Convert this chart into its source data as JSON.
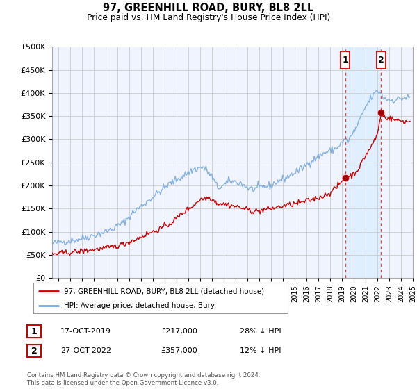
{
  "title": "97, GREENHILL ROAD, BURY, BL8 2LL",
  "subtitle": "Price paid vs. HM Land Registry's House Price Index (HPI)",
  "ylabel_ticks": [
    "£0",
    "£50K",
    "£100K",
    "£150K",
    "£200K",
    "£250K",
    "£300K",
    "£350K",
    "£400K",
    "£450K",
    "£500K"
  ],
  "ytick_values": [
    0,
    50000,
    100000,
    150000,
    200000,
    250000,
    300000,
    350000,
    400000,
    450000,
    500000
  ],
  "ylim": [
    0,
    500000
  ],
  "legend_label_red": "97, GREENHILL ROAD, BURY, BL8 2LL (detached house)",
  "legend_label_blue": "HPI: Average price, detached house, Bury",
  "annotation1_date": "17-OCT-2019",
  "annotation1_price": "£217,000",
  "annotation1_hpi": "28% ↓ HPI",
  "annotation2_date": "27-OCT-2022",
  "annotation2_price": "£357,000",
  "annotation2_hpi": "12% ↓ HPI",
  "footer": "Contains HM Land Registry data © Crown copyright and database right 2024.\nThis data is licensed under the Open Government Licence v3.0.",
  "red_color": "#cc0000",
  "blue_color": "#7aaadd",
  "shade_color": "#ddeeff",
  "vline_color": "#dd4444",
  "background_plot": "#f0f4ff",
  "grid_color": "#cccccc",
  "sale1_x": 2019.79,
  "sale2_x": 2022.82,
  "sale1_y": 217000,
  "sale2_y": 357000,
  "xmin": 1995.0,
  "xmax": 2025.3
}
